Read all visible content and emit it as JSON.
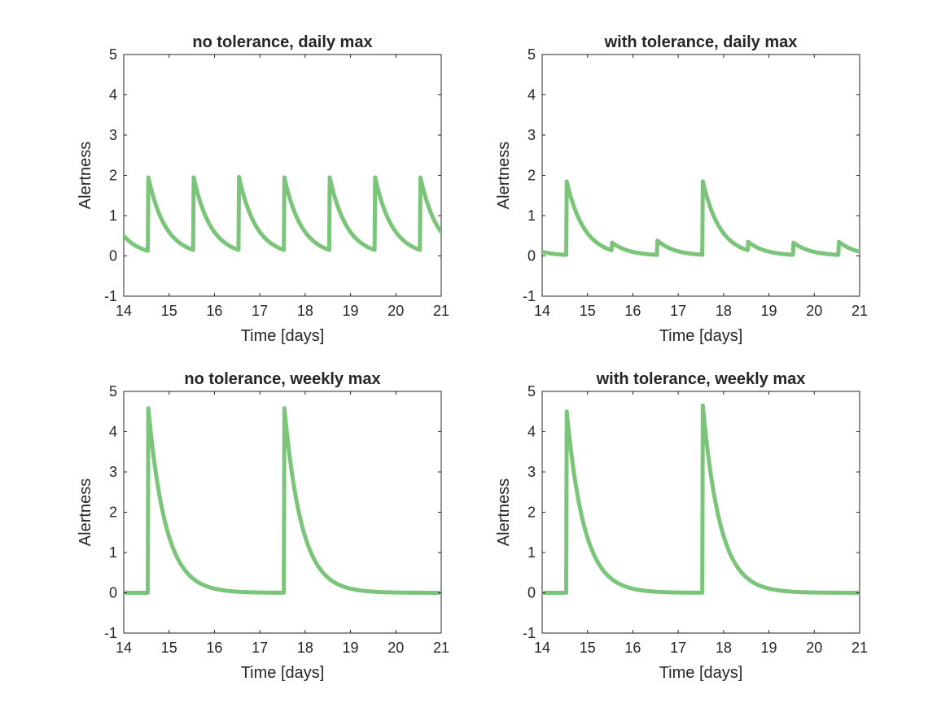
{
  "figure": {
    "line_color": "#7ac57a",
    "axis_color": "#262626",
    "background": "#ffffff"
  },
  "chart_data": [
    {
      "type": "line",
      "id": "no-tolerance-daily",
      "title": "no tolerance, daily max",
      "xlabel": "Time [days]",
      "ylabel": "Alertness",
      "xlim": [
        14,
        21
      ],
      "ylim": [
        -1,
        5
      ],
      "xticks": [
        14,
        15,
        16,
        17,
        18,
        19,
        20,
        21
      ],
      "yticks": [
        -1,
        0,
        1,
        2,
        3,
        4,
        5
      ],
      "grid": false,
      "series": [
        {
          "name": "Alertness",
          "color": "#7ac57a",
          "baseline": 0,
          "decay_per_day": 2.6,
          "initial_value": 0.5,
          "doses": [
            {
              "t": 14.53,
              "peak": 1.95
            },
            {
              "t": 15.53,
              "peak": 1.95
            },
            {
              "t": 16.53,
              "peak": 1.96
            },
            {
              "t": 17.53,
              "peak": 1.95
            },
            {
              "t": 18.53,
              "peak": 1.95
            },
            {
              "t": 19.53,
              "peak": 1.95
            },
            {
              "t": 20.53,
              "peak": 1.95
            }
          ]
        }
      ]
    },
    {
      "type": "line",
      "id": "with-tolerance-daily",
      "title": "with tolerance, daily max",
      "xlabel": "Time [days]",
      "ylabel": "Alertness",
      "xlim": [
        14,
        21
      ],
      "ylim": [
        -1,
        5
      ],
      "xticks": [
        14,
        15,
        16,
        17,
        18,
        19,
        20,
        21
      ],
      "yticks": [
        -1,
        0,
        1,
        2,
        3,
        4,
        5
      ],
      "grid": false,
      "series": [
        {
          "name": "Alertness",
          "color": "#7ac57a",
          "baseline": 0,
          "decay_per_day": 2.6,
          "initial_value": 0.1,
          "doses": [
            {
              "t": 14.53,
              "peak": 1.85
            },
            {
              "t": 15.53,
              "peak": 0.33
            },
            {
              "t": 16.53,
              "peak": 0.38
            },
            {
              "t": 17.53,
              "peak": 1.85
            },
            {
              "t": 18.53,
              "peak": 0.35
            },
            {
              "t": 19.53,
              "peak": 0.33
            },
            {
              "t": 20.53,
              "peak": 0.35
            }
          ]
        }
      ]
    },
    {
      "type": "line",
      "id": "no-tolerance-weekly",
      "title": "no tolerance, weekly max",
      "xlabel": "Time [days]",
      "ylabel": "Alertness",
      "xlim": [
        14,
        21
      ],
      "ylim": [
        -1,
        5
      ],
      "xticks": [
        14,
        15,
        16,
        17,
        18,
        19,
        20,
        21
      ],
      "yticks": [
        -1,
        0,
        1,
        2,
        3,
        4,
        5
      ],
      "grid": false,
      "series": [
        {
          "name": "Alertness",
          "color": "#7ac57a",
          "baseline": 0,
          "decay_per_day": 2.6,
          "initial_value": 0.0,
          "doses": [
            {
              "t": 14.53,
              "peak": 4.58
            },
            {
              "t": 17.53,
              "peak": 4.58
            }
          ]
        }
      ]
    },
    {
      "type": "line",
      "id": "with-tolerance-weekly",
      "title": "with tolerance, weekly max",
      "xlabel": "Time [days]",
      "ylabel": "Alertness",
      "xlim": [
        14,
        21
      ],
      "ylim": [
        -1,
        5
      ],
      "xticks": [
        14,
        15,
        16,
        17,
        18,
        19,
        20,
        21
      ],
      "yticks": [
        -1,
        0,
        1,
        2,
        3,
        4,
        5
      ],
      "grid": false,
      "series": [
        {
          "name": "Alertness",
          "color": "#7ac57a",
          "baseline": 0,
          "decay_per_day": 2.6,
          "initial_value": 0.0,
          "doses": [
            {
              "t": 14.53,
              "peak": 4.5
            },
            {
              "t": 17.53,
              "peak": 4.65
            }
          ]
        }
      ]
    }
  ]
}
